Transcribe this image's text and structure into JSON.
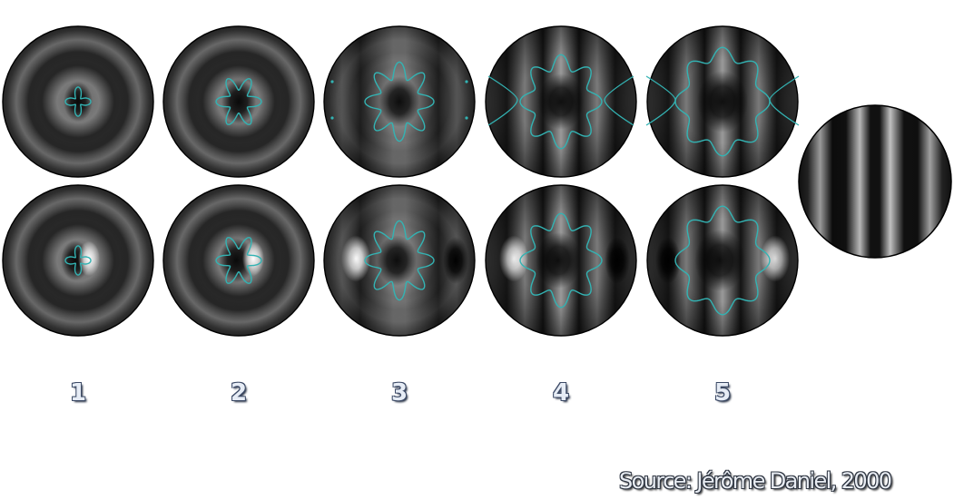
{
  "figure": {
    "orders": [
      "1",
      "2",
      "3",
      "4",
      "5"
    ],
    "source": "Source: Jérôme Daniel, 2000",
    "colors": {
      "contour": "#33b3b3",
      "disc_base": "#5a5a5a",
      "disc_border": "#000000"
    }
  }
}
